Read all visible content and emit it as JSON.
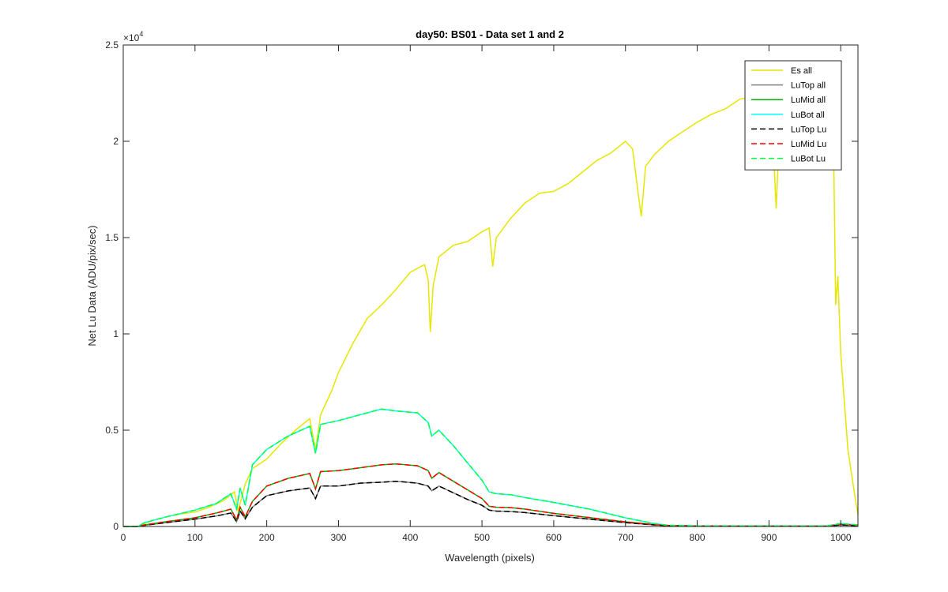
{
  "chart_data": {
    "type": "line",
    "title": "day50: BS01 - Data set 1 and 2",
    "xlabel": "Wavelength (pixels)",
    "ylabel": "Net Lu Data (ADU/pix/sec)",
    "xlim": [
      0,
      1024
    ],
    "ylim": [
      0,
      25000
    ],
    "x_ticks": [
      0,
      100,
      200,
      300,
      400,
      500,
      600,
      700,
      800,
      900,
      1000
    ],
    "x_tick_labels": [
      "0",
      "100",
      "200",
      "300",
      "400",
      "500",
      "600",
      "700",
      "800",
      "900",
      "1000"
    ],
    "y_ticks": [
      0,
      5000,
      10000,
      15000,
      20000,
      25000
    ],
    "y_tick_labels": [
      "0",
      "0.5",
      "1",
      "1.5",
      "2",
      "2.5"
    ],
    "y_exponent_base": "×10",
    "y_exponent_power": "4",
    "grid": false,
    "legend_position": "top-right",
    "series": [
      {
        "name": "Es  all",
        "color": "#e6e600",
        "dash": "solid",
        "x": [
          0,
          20,
          30,
          40,
          60,
          80,
          100,
          120,
          140,
          155,
          160,
          165,
          170,
          180,
          200,
          220,
          240,
          260,
          268,
          275,
          280,
          290,
          300,
          320,
          340,
          360,
          380,
          400,
          420,
          425,
          428,
          432,
          440,
          460,
          480,
          500,
          510,
          515,
          520,
          540,
          560,
          580,
          600,
          620,
          640,
          660,
          680,
          700,
          710,
          718,
          722,
          728,
          740,
          760,
          780,
          800,
          820,
          840,
          860,
          880,
          900,
          905,
          910,
          915,
          930,
          950,
          970,
          985,
          990,
          993,
          996,
          1000,
          1010,
          1020,
          1024
        ],
        "y": [
          0,
          0,
          150,
          300,
          500,
          650,
          750,
          1000,
          1350,
          1800,
          800,
          1500,
          2200,
          3000,
          3500,
          4300,
          5000,
          5600,
          4000,
          5800,
          6200,
          7000,
          8000,
          9500,
          10800,
          11500,
          12300,
          13200,
          13600,
          12800,
          10100,
          12500,
          14000,
          14600,
          14800,
          15300,
          15500,
          13500,
          15000,
          16000,
          16800,
          17300,
          17400,
          17800,
          18400,
          19000,
          19400,
          20000,
          19600,
          17200,
          16100,
          18700,
          19300,
          20000,
          20500,
          21000,
          21400,
          21700,
          22200,
          22300,
          21600,
          20500,
          16500,
          20800,
          22200,
          22300,
          22500,
          22400,
          20000,
          11500,
          13000,
          9000,
          4000,
          1500,
          600
        ]
      },
      {
        "name": "LuTop  all",
        "color": "#808080",
        "dash": "solid",
        "x": [
          0,
          20,
          30,
          60,
          100,
          130,
          150,
          158,
          163,
          170,
          180,
          200,
          230,
          260,
          268,
          275,
          300,
          330,
          360,
          380,
          410,
          425,
          430,
          440,
          460,
          480,
          500,
          510,
          520,
          540,
          560,
          600,
          650,
          700,
          740,
          760,
          800,
          900,
          980,
          1000,
          1024
        ],
        "y": [
          0,
          0,
          60,
          200,
          380,
          550,
          700,
          250,
          800,
          400,
          1000,
          1600,
          1850,
          2000,
          1450,
          2100,
          2100,
          2250,
          2300,
          2350,
          2250,
          2100,
          1850,
          2100,
          1750,
          1400,
          1100,
          850,
          800,
          780,
          720,
          560,
          380,
          200,
          80,
          40,
          20,
          15,
          15,
          80,
          40
        ]
      },
      {
        "name": "LuMid  all",
        "color": "#00b400",
        "dash": "solid",
        "x": [
          0,
          20,
          30,
          60,
          100,
          130,
          150,
          158,
          163,
          170,
          180,
          200,
          230,
          260,
          268,
          275,
          300,
          330,
          360,
          380,
          410,
          425,
          430,
          440,
          460,
          480,
          500,
          510,
          520,
          540,
          560,
          600,
          650,
          700,
          740,
          760,
          800,
          900,
          980,
          1000,
          1024
        ],
        "y": [
          0,
          0,
          80,
          250,
          450,
          700,
          900,
          350,
          1000,
          500,
          1300,
          2100,
          2500,
          2750,
          1950,
          2850,
          2900,
          3050,
          3200,
          3250,
          3150,
          2900,
          2500,
          2800,
          2350,
          1900,
          1450,
          1050,
          1000,
          980,
          900,
          680,
          460,
          240,
          100,
          50,
          25,
          20,
          20,
          120,
          60
        ]
      },
      {
        "name": "LuBot  all",
        "color": "#00ffff",
        "dash": "solid",
        "x": [
          0,
          20,
          30,
          60,
          100,
          130,
          150,
          158,
          163,
          170,
          180,
          200,
          230,
          260,
          268,
          275,
          300,
          330,
          360,
          380,
          410,
          425,
          430,
          440,
          460,
          480,
          500,
          510,
          520,
          540,
          560,
          600,
          650,
          700,
          740,
          760,
          800,
          900,
          980,
          1000,
          1024
        ],
        "y": [
          0,
          0,
          200,
          500,
          850,
          1200,
          1700,
          900,
          2000,
          1100,
          3200,
          4000,
          4700,
          5200,
          3800,
          5300,
          5500,
          5800,
          6100,
          6000,
          5900,
          5400,
          4700,
          5000,
          4200,
          3300,
          2400,
          1800,
          1700,
          1650,
          1500,
          1250,
          900,
          450,
          150,
          60,
          30,
          25,
          25,
          150,
          80
        ]
      },
      {
        "name": "LuTop  Lu",
        "color": "#000000",
        "dash": "dashed",
        "x": [
          0,
          20,
          30,
          60,
          100,
          130,
          150,
          158,
          163,
          170,
          180,
          200,
          230,
          260,
          268,
          275,
          300,
          330,
          360,
          380,
          410,
          425,
          430,
          440,
          460,
          480,
          500,
          510,
          520,
          540,
          560,
          600,
          650,
          700,
          740,
          760,
          800,
          900,
          980,
          1000,
          1024
        ],
        "y": [
          0,
          0,
          60,
          200,
          380,
          550,
          700,
          250,
          800,
          400,
          1000,
          1600,
          1850,
          2000,
          1450,
          2100,
          2100,
          2250,
          2300,
          2350,
          2250,
          2100,
          1850,
          2100,
          1750,
          1400,
          1100,
          850,
          800,
          780,
          720,
          560,
          380,
          200,
          80,
          40,
          20,
          15,
          15,
          80,
          40
        ]
      },
      {
        "name": "LuMid  Lu",
        "color": "#ff0000",
        "dash": "dashed",
        "x": [
          0,
          20,
          30,
          60,
          100,
          130,
          150,
          158,
          163,
          170,
          180,
          200,
          230,
          260,
          268,
          275,
          300,
          330,
          360,
          380,
          410,
          425,
          430,
          440,
          460,
          480,
          500,
          510,
          520,
          540,
          560,
          600,
          650,
          700,
          740,
          760,
          800,
          900,
          980,
          1000,
          1024
        ],
        "y": [
          0,
          0,
          80,
          250,
          450,
          700,
          900,
          350,
          1000,
          500,
          1300,
          2100,
          2500,
          2750,
          1950,
          2850,
          2900,
          3050,
          3200,
          3250,
          3150,
          2900,
          2500,
          2800,
          2350,
          1900,
          1450,
          1050,
          1000,
          980,
          900,
          680,
          460,
          240,
          100,
          50,
          25,
          20,
          20,
          120,
          60
        ]
      },
      {
        "name": "LuBot  Lu",
        "color": "#00ff40",
        "dash": "dashed",
        "x": [
          0,
          20,
          30,
          60,
          100,
          130,
          150,
          158,
          163,
          170,
          180,
          200,
          230,
          260,
          268,
          275,
          300,
          330,
          360,
          380,
          410,
          425,
          430,
          440,
          460,
          480,
          500,
          510,
          520,
          540,
          560,
          600,
          650,
          700,
          740,
          760,
          800,
          900,
          980,
          1000,
          1024
        ],
        "y": [
          0,
          0,
          200,
          500,
          850,
          1200,
          1700,
          900,
          2000,
          1100,
          3200,
          4000,
          4700,
          5200,
          3800,
          5300,
          5500,
          5800,
          6100,
          6000,
          5900,
          5400,
          4700,
          5000,
          4200,
          3300,
          2400,
          1800,
          1700,
          1650,
          1500,
          1250,
          900,
          450,
          150,
          60,
          30,
          25,
          25,
          150,
          80
        ]
      }
    ]
  }
}
